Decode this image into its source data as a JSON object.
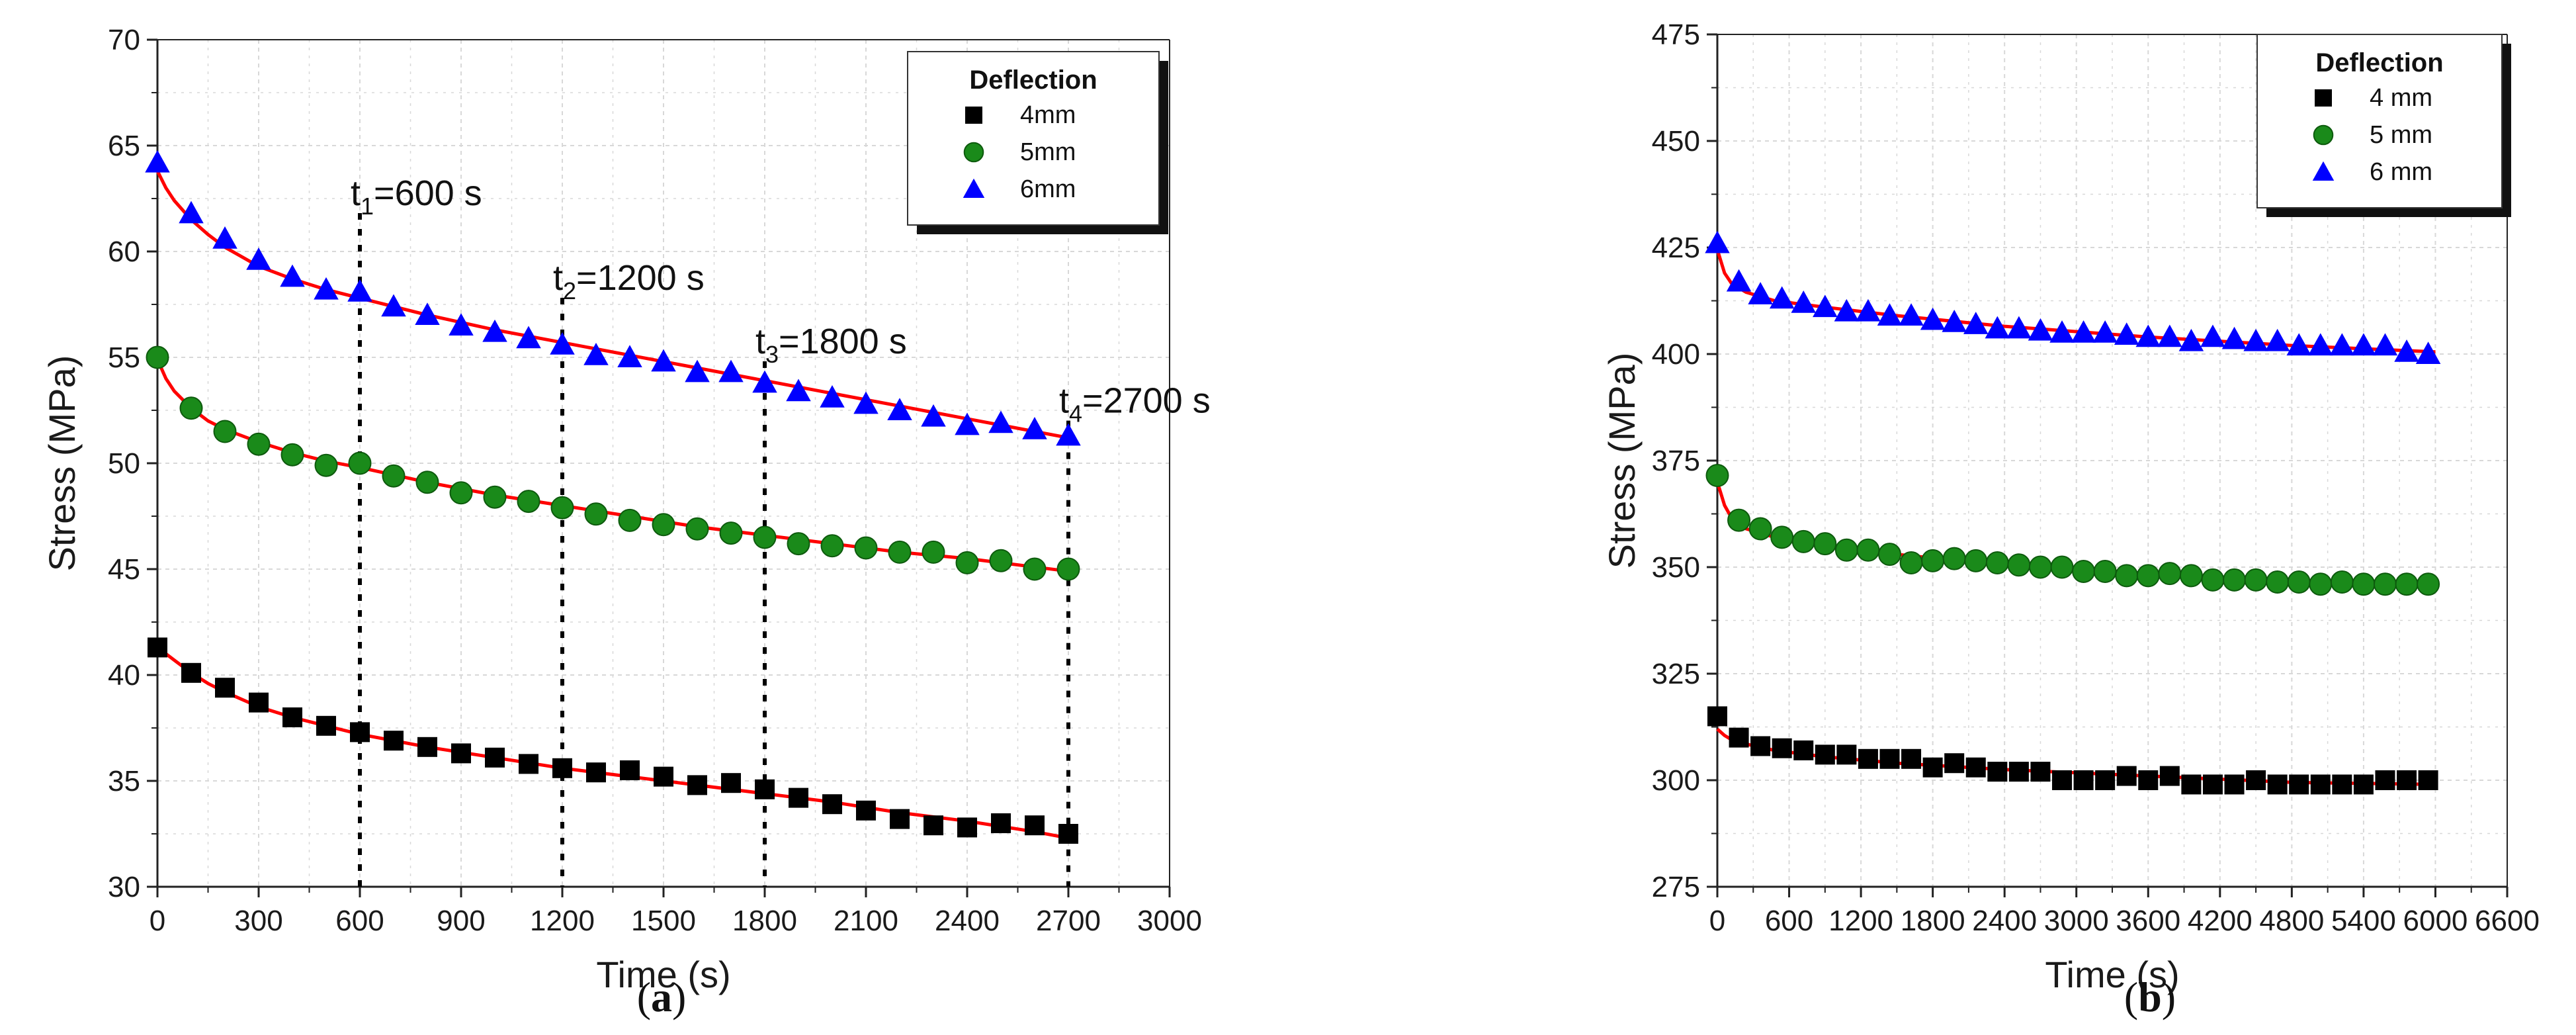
{
  "colors": {
    "fit_line": "#ff0000",
    "series_4mm": "#000000",
    "series_5mm": "#1a8a1a",
    "series_6mm": "#0000ff",
    "grid": "#d8d8d8",
    "marker_line": "#000000"
  },
  "chart_data": [
    {
      "type": "scatter",
      "panel_label": "a",
      "xlabel": "Time (s)",
      "ylabel": "Stress (MPa)",
      "xlim": [
        0,
        3000
      ],
      "ylim": [
        30,
        70
      ],
      "xticks": [
        0,
        300,
        600,
        900,
        1200,
        1500,
        1800,
        2100,
        2400,
        2700,
        3000
      ],
      "xtick_labels": [
        "0",
        "300",
        "600",
        "900",
        "1200",
        "1500",
        "1800",
        "2100",
        "2400",
        "2700",
        "3000"
      ],
      "yticks": [
        30,
        35,
        40,
        45,
        50,
        55,
        60,
        65,
        70
      ],
      "ytick_labels": [
        "30",
        "35",
        "40",
        "45",
        "50",
        "55",
        "60",
        "65",
        "70"
      ],
      "grid": true,
      "legend": {
        "title": "Deflection",
        "placement": "top-right",
        "entries": [
          "4mm",
          "5mm",
          "6mm"
        ]
      },
      "series": [
        {
          "name": "4mm",
          "marker": "square",
          "color": "#000000",
          "x": [
            0,
            100,
            200,
            300,
            400,
            500,
            600,
            700,
            800,
            900,
            1000,
            1100,
            1200,
            1300,
            1400,
            1500,
            1600,
            1700,
            1800,
            1900,
            2000,
            2100,
            2200,
            2300,
            2400,
            2500,
            2600,
            2700
          ],
          "values": [
            41.3,
            40.1,
            39.4,
            38.7,
            38.0,
            37.6,
            37.3,
            36.9,
            36.6,
            36.3,
            36.1,
            35.8,
            35.6,
            35.4,
            35.5,
            35.2,
            34.8,
            34.9,
            34.6,
            34.2,
            33.9,
            33.6,
            33.2,
            32.9,
            32.8,
            33.0,
            32.9,
            32.5
          ]
        },
        {
          "name": "5mm",
          "marker": "circle",
          "color": "#1a8a1a",
          "x": [
            0,
            100,
            200,
            300,
            400,
            500,
            600,
            700,
            800,
            900,
            1000,
            1100,
            1200,
            1300,
            1400,
            1500,
            1600,
            1700,
            1800,
            1900,
            2000,
            2100,
            2200,
            2300,
            2400,
            2500,
            2600,
            2700
          ],
          "values": [
            55.0,
            52.6,
            51.5,
            50.9,
            50.4,
            49.9,
            50.0,
            49.4,
            49.1,
            48.6,
            48.4,
            48.2,
            47.9,
            47.6,
            47.3,
            47.1,
            46.9,
            46.7,
            46.5,
            46.2,
            46.1,
            46.0,
            45.8,
            45.8,
            45.3,
            45.4,
            45.0,
            45.0
          ]
        },
        {
          "name": "6mm",
          "marker": "triangle",
          "color": "#0000ff",
          "x": [
            0,
            100,
            200,
            300,
            400,
            500,
            600,
            700,
            800,
            900,
            1000,
            1100,
            1200,
            1300,
            1400,
            1500,
            1600,
            1700,
            1800,
            1900,
            2000,
            2100,
            2200,
            2300,
            2400,
            2500,
            2600,
            2700
          ],
          "values": [
            64.2,
            61.8,
            60.6,
            59.6,
            58.8,
            58.2,
            58.1,
            57.4,
            57.0,
            56.5,
            56.2,
            55.9,
            55.6,
            55.1,
            55.0,
            54.8,
            54.3,
            54.3,
            53.8,
            53.4,
            53.1,
            52.8,
            52.5,
            52.2,
            51.8,
            51.9,
            51.6,
            51.3
          ]
        }
      ],
      "fits": [
        {
          "name": "4mm fit",
          "x": [
            0,
            25,
            50,
            100,
            150,
            200,
            300,
            400,
            500,
            600,
            800,
            1000,
            1200,
            1400,
            1600,
            1800,
            2000,
            2200,
            2400,
            2600,
            2700
          ],
          "values": [
            41.4,
            41.0,
            40.7,
            40.1,
            39.6,
            39.2,
            38.5,
            38.0,
            37.6,
            37.2,
            36.6,
            36.1,
            35.6,
            35.2,
            34.8,
            34.4,
            34.0,
            33.5,
            33.1,
            32.6,
            32.3
          ]
        },
        {
          "name": "5mm fit",
          "x": [
            0,
            25,
            50,
            100,
            150,
            200,
            300,
            400,
            500,
            600,
            800,
            1000,
            1200,
            1400,
            1600,
            1800,
            2000,
            2200,
            2400,
            2600,
            2700
          ],
          "values": [
            54.9,
            54.0,
            53.4,
            52.6,
            52.0,
            51.6,
            51.0,
            50.5,
            50.1,
            49.8,
            49.1,
            48.5,
            48.0,
            47.5,
            47.0,
            46.6,
            46.2,
            45.8,
            45.5,
            45.1,
            44.9
          ]
        },
        {
          "name": "6mm fit",
          "x": [
            0,
            25,
            50,
            100,
            150,
            200,
            300,
            400,
            500,
            600,
            800,
            1000,
            1200,
            1400,
            1600,
            1800,
            2000,
            2200,
            2400,
            2600,
            2700
          ],
          "values": [
            63.8,
            63.0,
            62.4,
            61.5,
            60.8,
            60.2,
            59.3,
            58.7,
            58.2,
            57.8,
            57.0,
            56.3,
            55.7,
            55.1,
            54.5,
            53.9,
            53.3,
            52.7,
            52.1,
            51.5,
            51.2
          ]
        }
      ],
      "vlines": [
        {
          "x": 600,
          "label_main": "t",
          "label_sub": "1",
          "label_rest": "=600 s",
          "label_y": 61.5
        },
        {
          "x": 1200,
          "label_main": "t",
          "label_sub": "2",
          "label_rest": "=1200 s",
          "label_y": 57.5
        },
        {
          "x": 1800,
          "label_main": "t",
          "label_sub": "3",
          "label_rest": "=1800 s",
          "label_y": 54.5
        },
        {
          "x": 2700,
          "label_main": "t",
          "label_sub": "4",
          "label_rest": "=2700 s",
          "label_y": 51.7
        }
      ]
    },
    {
      "type": "scatter",
      "panel_label": "b",
      "xlabel": "Time (s)",
      "ylabel": "Stress (MPa)",
      "xlim": [
        0,
        6600
      ],
      "ylim": [
        275,
        475
      ],
      "xticks": [
        0,
        600,
        1200,
        1800,
        2400,
        3000,
        3600,
        4200,
        4800,
        5400,
        6000,
        6600
      ],
      "xtick_labels": [
        "0",
        "600",
        "1200",
        "1800",
        "2400",
        "3000",
        "3600",
        "4200",
        "4800",
        "5400",
        "6000",
        "6600"
      ],
      "yticks": [
        275,
        300,
        325,
        350,
        375,
        400,
        425,
        450,
        475
      ],
      "ytick_labels": [
        "275",
        "300",
        "325",
        "350",
        "375",
        "400",
        "425",
        "450",
        "475"
      ],
      "grid": true,
      "legend": {
        "title": "Deflection",
        "placement": "top-right",
        "entries": [
          "4 mm",
          "5 mm",
          "6 mm"
        ]
      },
      "series": [
        {
          "name": "4 mm",
          "marker": "square",
          "color": "#000000",
          "x": [
            0,
            180,
            360,
            540,
            720,
            900,
            1080,
            1260,
            1440,
            1620,
            1800,
            1980,
            2160,
            2340,
            2520,
            2700,
            2880,
            3060,
            3240,
            3420,
            3600,
            3780,
            3960,
            4140,
            4320,
            4500,
            4680,
            4860,
            5040,
            5220,
            5400,
            5580,
            5760,
            5940
          ],
          "values": [
            315,
            310,
            308,
            307.5,
            307,
            306,
            306,
            305,
            305,
            305,
            303,
            304,
            303,
            302,
            302,
            302,
            300,
            300,
            300,
            301,
            300,
            301,
            299,
            299,
            299,
            300,
            299,
            299,
            299,
            299,
            299,
            300,
            300,
            300
          ]
        },
        {
          "name": "5 mm",
          "marker": "circle",
          "color": "#1a8a1a",
          "x": [
            0,
            180,
            360,
            540,
            720,
            900,
            1080,
            1260,
            1440,
            1620,
            1800,
            1980,
            2160,
            2340,
            2520,
            2700,
            2880,
            3060,
            3240,
            3420,
            3600,
            3780,
            3960,
            4140,
            4320,
            4500,
            4680,
            4860,
            5040,
            5220,
            5400,
            5580,
            5760,
            5940
          ],
          "values": [
            371.5,
            361,
            359,
            357,
            356,
            355.5,
            354,
            354,
            353,
            351,
            351.5,
            352,
            351.5,
            351,
            350.5,
            350,
            350,
            349,
            349,
            348,
            348,
            348.5,
            348,
            347,
            347,
            347,
            346.5,
            346.5,
            346,
            346.5,
            346,
            346,
            346,
            346
          ]
        },
        {
          "name": "6 mm",
          "marker": "triangle",
          "color": "#0000ff",
          "x": [
            0,
            180,
            360,
            540,
            720,
            900,
            1080,
            1260,
            1440,
            1620,
            1800,
            1980,
            2160,
            2340,
            2520,
            2700,
            2880,
            3060,
            3240,
            3420,
            3600,
            3780,
            3960,
            4140,
            4320,
            4500,
            4680,
            4860,
            5040,
            5220,
            5400,
            5580,
            5760,
            5940
          ],
          "values": [
            426,
            417,
            414,
            413,
            412,
            411,
            410,
            410,
            409,
            409,
            408,
            407.5,
            407,
            406,
            406,
            405.5,
            405,
            405,
            405,
            404.5,
            404,
            404,
            403,
            404,
            403.5,
            403,
            403,
            402,
            402,
            402,
            402,
            402,
            400.5,
            400
          ]
        }
      ],
      "fits": [
        {
          "name": "4 mm fit",
          "x": [
            0,
            60,
            120,
            240,
            480,
            900,
            1500,
            2400,
            3600,
            4800,
            6000
          ],
          "values": [
            312,
            310.5,
            309.5,
            308.5,
            307,
            305.5,
            304,
            302.5,
            301,
            299.5,
            299
          ]
        },
        {
          "name": "5 mm fit",
          "x": [
            0,
            60,
            120,
            240,
            480,
            900,
            1500,
            2400,
            3600,
            4800,
            6000
          ],
          "values": [
            370,
            364.5,
            361.5,
            359,
            357,
            355,
            353,
            350.5,
            348.5,
            346.5,
            345.5
          ]
        },
        {
          "name": "6 mm fit",
          "x": [
            0,
            60,
            120,
            240,
            480,
            900,
            1500,
            2400,
            3600,
            4800,
            6000
          ],
          "values": [
            424.5,
            419,
            416.5,
            414.5,
            412.5,
            411,
            409,
            406.5,
            404,
            402,
            400.5
          ]
        }
      ]
    }
  ]
}
